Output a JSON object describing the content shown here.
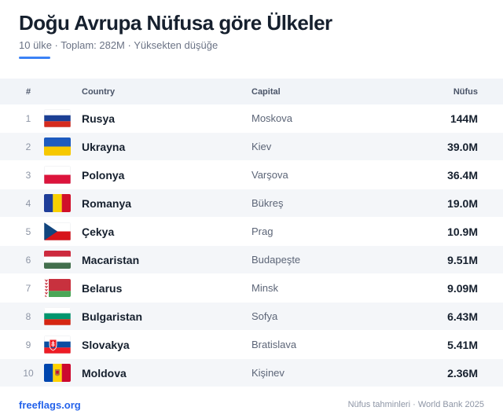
{
  "header": {
    "title": "Doğu Avrupa Nüfusa göre Ülkeler",
    "subtitle": "10 ülke · Toplam: 282M · Yüksekten düşüğe"
  },
  "table": {
    "columns": {
      "rank": "#",
      "country": "Country",
      "capital": "Capital",
      "population": "Nüfus"
    },
    "rows": [
      {
        "rank": "1",
        "flag": "russia-flag-icon",
        "country": "Rusya",
        "capital": "Moskova",
        "population": "144M"
      },
      {
        "rank": "2",
        "flag": "ukraine-flag-icon",
        "country": "Ukrayna",
        "capital": "Kiev",
        "population": "39.0M"
      },
      {
        "rank": "3",
        "flag": "poland-flag-icon",
        "country": "Polonya",
        "capital": "Varşova",
        "population": "36.4M"
      },
      {
        "rank": "4",
        "flag": "romania-flag-icon",
        "country": "Romanya",
        "capital": "Bükreş",
        "population": "19.0M"
      },
      {
        "rank": "5",
        "flag": "czechia-flag-icon",
        "country": "Çekya",
        "capital": "Prag",
        "population": "10.9M"
      },
      {
        "rank": "6",
        "flag": "hungary-flag-icon",
        "country": "Macaristan",
        "capital": "Budapeşte",
        "population": "9.51M"
      },
      {
        "rank": "7",
        "flag": "belarus-flag-icon",
        "country": "Belarus",
        "capital": "Minsk",
        "population": "9.09M"
      },
      {
        "rank": "8",
        "flag": "bulgaria-flag-icon",
        "country": "Bulgaristan",
        "capital": "Sofya",
        "population": "6.43M"
      },
      {
        "rank": "9",
        "flag": "slovakia-flag-icon",
        "country": "Slovakya",
        "capital": "Bratislava",
        "population": "5.41M"
      },
      {
        "rank": "10",
        "flag": "moldova-flag-icon",
        "country": "Moldova",
        "capital": "Kişinev",
        "population": "2.36M"
      }
    ]
  },
  "footer": {
    "brand": "freeflags.org",
    "source": "Nüfus tahminleri · World Bank 2025"
  },
  "colors": {
    "accent": "#3b82f6",
    "brand": "#2563eb",
    "header_bg": "#f1f4f8",
    "alt_row_bg": "#f4f6f9"
  }
}
